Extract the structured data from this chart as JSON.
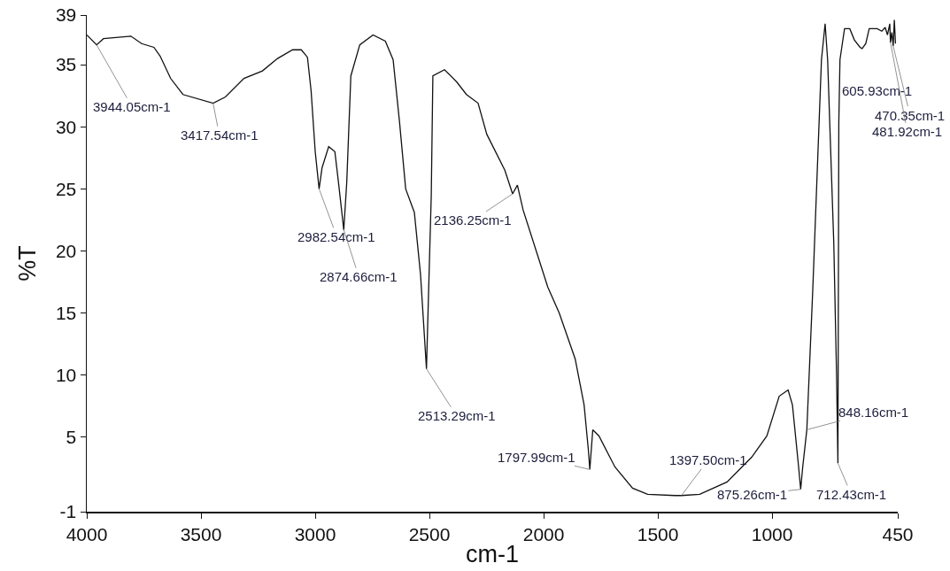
{
  "chart_data": {
    "type": "line",
    "xlabel": "cm-1",
    "ylabel": "%T",
    "x": [
      4000,
      3957,
      3927,
      3807,
      3760,
      3706,
      3679,
      3633,
      3579,
      3447,
      3393,
      3312,
      3231,
      3165,
      3099,
      3061,
      3034,
      3018,
      3000,
      2983,
      2970,
      2941,
      2914,
      2898,
      2875,
      2862,
      2844,
      2805,
      2747,
      2693,
      2659,
      2631,
      2604,
      2566,
      2539,
      2513,
      2492,
      2485,
      2434,
      2380,
      2338,
      2287,
      2249,
      2170,
      2136,
      2115,
      2090,
      1982,
      1932,
      1862,
      1823,
      1804,
      1798,
      1785,
      1758,
      1688,
      1611,
      1545,
      1425,
      1397,
      1317,
      1197,
      1089,
      1023,
      969,
      930,
      911,
      884,
      875,
      866,
      848,
      822,
      784,
      768,
      757,
      730,
      718,
      712,
      708,
      703,
      683,
      660,
      640,
      615,
      606,
      590,
      575,
      540,
      520,
      505,
      495,
      485,
      482,
      476,
      470,
      465,
      460
    ],
    "series": [
      {
        "color": "#111111",
        "values": [
          37.4,
          36.6,
          37.1,
          37.3,
          36.7,
          36.4,
          35.7,
          33.9,
          32.6,
          31.9,
          32.4,
          33.9,
          34.5,
          35.5,
          36.2,
          36.2,
          35.6,
          32.9,
          28.0,
          25.0,
          26.7,
          28.4,
          28.0,
          25.5,
          21.7,
          25.5,
          34.1,
          36.6,
          37.4,
          36.9,
          35.4,
          30.4,
          25.0,
          23.1,
          18.1,
          10.5,
          24.5,
          34.1,
          34.6,
          33.6,
          32.6,
          31.9,
          29.4,
          26.5,
          24.6,
          25.3,
          23.3,
          17.1,
          15.0,
          11.3,
          7.6,
          3.9,
          2.4,
          5.6,
          5.1,
          2.6,
          0.9,
          0.4,
          0.3,
          0.3,
          0.4,
          1.4,
          3.4,
          5.1,
          8.3,
          8.8,
          7.6,
          2.6,
          0.8,
          2.6,
          5.6,
          16.9,
          35.4,
          38.3,
          35.4,
          20.6,
          10.1,
          2.9,
          30.4,
          35.4,
          37.9,
          37.9,
          37.0,
          36.4,
          36.3,
          36.7,
          37.9,
          37.9,
          37.7,
          38.0,
          37.4,
          38.3,
          36.8,
          37.6,
          36.5,
          38.6,
          36.7
        ]
      }
    ],
    "xlim": [
      4000,
      450
    ],
    "xticks": [
      4000,
      3500,
      3000,
      2500,
      2000,
      1500,
      1000,
      450
    ],
    "ylim": [
      -1,
      39
    ],
    "yticks": [
      -1,
      5,
      10,
      15,
      20,
      25,
      30,
      35,
      39
    ],
    "grid": false,
    "marker": "none",
    "line_style": "solid",
    "annotations": [
      {
        "text": "3944.05cm-1",
        "x": 3957,
        "y": 36.6
      },
      {
        "text": "3417.54cm-1",
        "x": 3447,
        "y": 31.9
      },
      {
        "text": "2982.54cm-1",
        "x": 2983,
        "y": 25.0
      },
      {
        "text": "2874.66cm-1",
        "x": 2875,
        "y": 21.7
      },
      {
        "text": "2513.29cm-1",
        "x": 2513,
        "y": 10.5
      },
      {
        "text": "2136.25cm-1",
        "x": 2136,
        "y": 24.6
      },
      {
        "text": "1797.99cm-1",
        "x": 1798,
        "y": 2.4
      },
      {
        "text": "1397.50cm-1",
        "x": 1397,
        "y": 0.3
      },
      {
        "text": "875.26cm-1",
        "x": 875,
        "y": 0.8
      },
      {
        "text": "848.16cm-1",
        "x": 848,
        "y": 5.6
      },
      {
        "text": "712.43cm-1",
        "x": 712,
        "y": 2.9
      },
      {
        "text": "605.93cm-1",
        "x": 606,
        "y": 36.3
      },
      {
        "text": "470.35cm-1",
        "x": 470,
        "y": 36.5
      },
      {
        "text": "481.92cm-1",
        "x": 482,
        "y": 36.8
      }
    ]
  }
}
